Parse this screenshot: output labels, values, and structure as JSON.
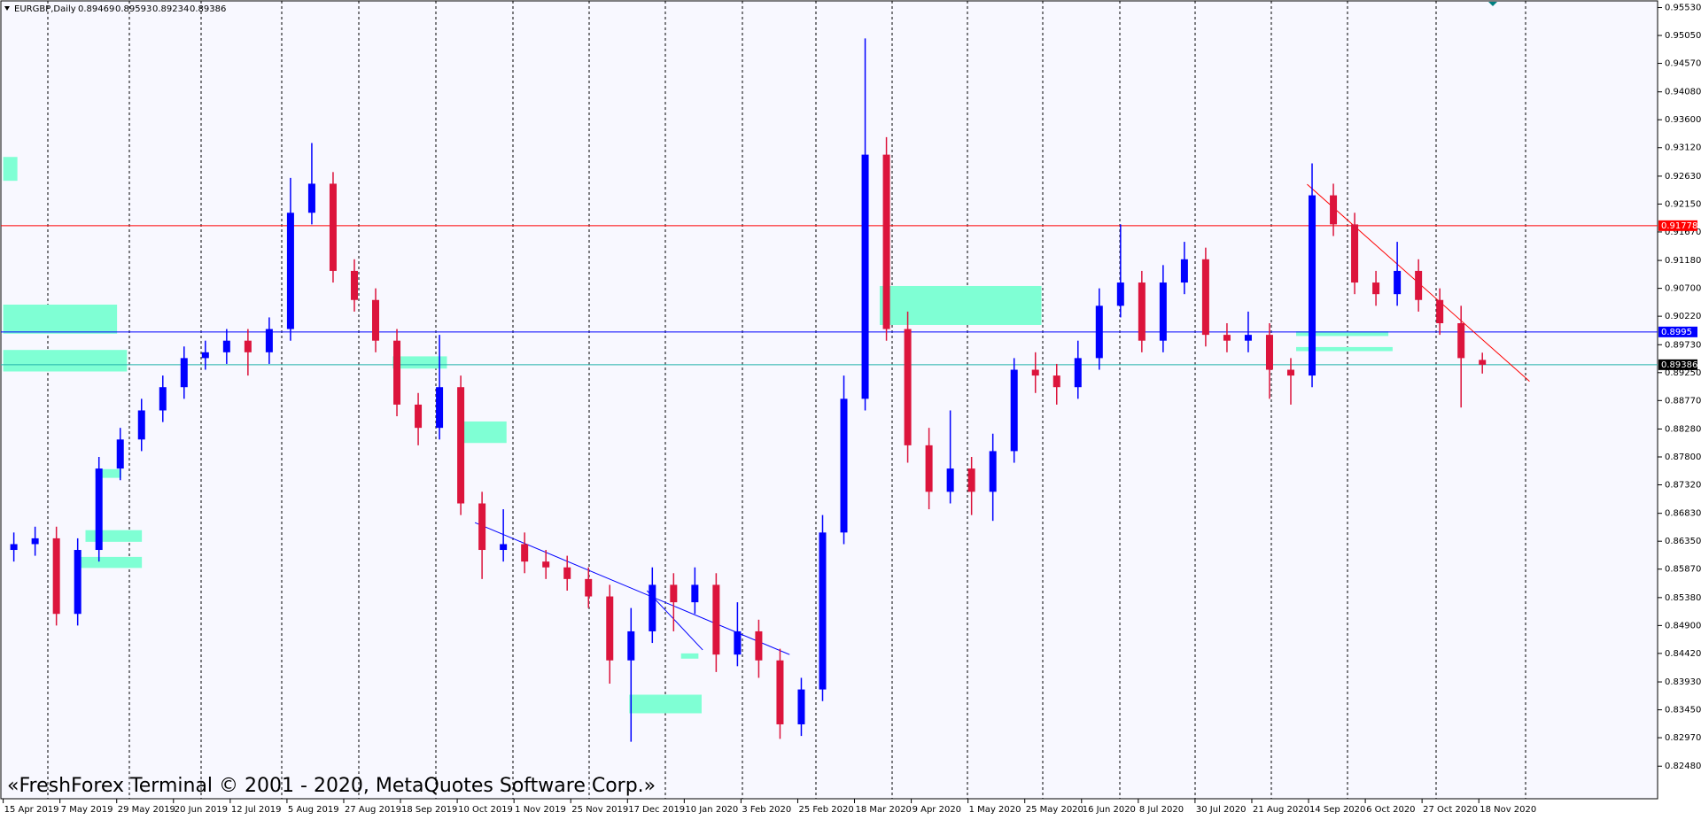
{
  "chart_data": {
    "type": "candlestick",
    "symbol": "EURGBP,Daily",
    "ohlc_header": [
      0.89469,
      0.89593,
      0.89234,
      0.89386
    ],
    "watermark": "«FreshForex Terminal © 2001 - 2020, MetaQuotes Software Corp.»",
    "up_color": "#0000ff",
    "down_color": "#dc143c",
    "zone_color": "#7fffd4",
    "xlim": [
      -0.9,
      466.4
    ],
    "ylim": [
      0.8192,
      0.9566
    ],
    "xticks": [
      {
        "value": 0,
        "label": "15 Apr 2019"
      },
      {
        "value": 16,
        "label": "7 May 2019"
      },
      {
        "value": 32,
        "label": "29 May 2019"
      },
      {
        "value": 48,
        "label": "20 Jun 2019"
      },
      {
        "value": 64,
        "label": "12 Jul 2019"
      },
      {
        "value": 80,
        "label": "5 Aug 2019"
      },
      {
        "value": 96,
        "label": "27 Aug 2019"
      },
      {
        "value": 112,
        "label": "18 Sep 2019"
      },
      {
        "value": 128,
        "label": "10 Oct 2019"
      },
      {
        "value": 144,
        "label": "1 Nov 2019"
      },
      {
        "value": 160,
        "label": "25 Nov 2019"
      },
      {
        "value": 176,
        "label": "17 Dec 2019"
      },
      {
        "value": 192,
        "label": "10 Jan 2020"
      },
      {
        "value": 208,
        "label": "3 Feb 2020"
      },
      {
        "value": 224,
        "label": "25 Feb 2020"
      },
      {
        "value": 240,
        "label": "18 Mar 2020"
      },
      {
        "value": 256,
        "label": "9 Apr 2020"
      },
      {
        "value": 272,
        "label": "1 May 2020"
      },
      {
        "value": 288,
        "label": "25 May 2020"
      },
      {
        "value": 304,
        "label": "16 Jun 2020"
      },
      {
        "value": 320,
        "label": "8 Jul 2020"
      },
      {
        "value": 336,
        "label": "30 Jul 2020"
      },
      {
        "value": 352,
        "label": "21 Aug 2020"
      },
      {
        "value": 368,
        "label": "14 Sep 2020"
      },
      {
        "value": 384,
        "label": "6 Oct 2020"
      },
      {
        "value": 400,
        "label": "27 Oct 2020"
      },
      {
        "value": 416,
        "label": "18 Nov 2020"
      }
    ],
    "yticks": [
      {
        "value": 0.9553,
        "label": "0.95530"
      },
      {
        "value": 0.9505,
        "label": "0.95050"
      },
      {
        "value": 0.9457,
        "label": "0.94570"
      },
      {
        "value": 0.9408,
        "label": "0.94080"
      },
      {
        "value": 0.936,
        "label": "0.93600"
      },
      {
        "value": 0.9312,
        "label": "0.93120"
      },
      {
        "value": 0.9263,
        "label": "0.92630"
      },
      {
        "value": 0.9215,
        "label": "0.92150"
      },
      {
        "value": 0.9167,
        "label": "0.91670"
      },
      {
        "value": 0.9118,
        "label": "0.91180"
      },
      {
        "value": 0.907,
        "label": "0.90700"
      },
      {
        "value": 0.9022,
        "label": "0.90220"
      },
      {
        "value": 0.8973,
        "label": "0.89730"
      },
      {
        "value": 0.8925,
        "label": "0.89250"
      },
      {
        "value": 0.8877,
        "label": "0.88770"
      },
      {
        "value": 0.8828,
        "label": "0.88280"
      },
      {
        "value": 0.878,
        "label": "0.87800"
      },
      {
        "value": 0.8732,
        "label": "0.87320"
      },
      {
        "value": 0.8683,
        "label": "0.86830"
      },
      {
        "value": 0.8635,
        "label": "0.86350"
      },
      {
        "value": 0.8587,
        "label": "0.85870"
      },
      {
        "value": 0.8538,
        "label": "0.85380"
      },
      {
        "value": 0.849,
        "label": "0.84900"
      },
      {
        "value": 0.8442,
        "label": "0.84420"
      },
      {
        "value": 0.8393,
        "label": "0.83930"
      },
      {
        "value": 0.8345,
        "label": "0.83450"
      },
      {
        "value": 0.8297,
        "label": "0.82970"
      },
      {
        "value": 0.8248,
        "label": "0.82480"
      }
    ],
    "candles": {
      "x": [
        3,
        9,
        15,
        21,
        27,
        33,
        39,
        45,
        51,
        57,
        63,
        69,
        75,
        81,
        87,
        93,
        99,
        105,
        111,
        117,
        123,
        129,
        135,
        141,
        147,
        153,
        159,
        165,
        171,
        177,
        183,
        189,
        195,
        201,
        207,
        213,
        219,
        225,
        231,
        237,
        243,
        249,
        255,
        261,
        267,
        273,
        279,
        285,
        291,
        297,
        303,
        309,
        315,
        321,
        327,
        333,
        339,
        345,
        351,
        357,
        363,
        369,
        375,
        381,
        387,
        393,
        399,
        405,
        411,
        417
      ],
      "open": [
        0.862,
        0.863,
        0.864,
        0.851,
        0.862,
        0.876,
        0.881,
        0.886,
        0.89,
        0.895,
        0.896,
        0.898,
        0.896,
        0.9,
        0.92,
        0.925,
        0.91,
        0.905,
        0.898,
        0.887,
        0.883,
        0.89,
        0.87,
        0.862,
        0.863,
        0.86,
        0.859,
        0.857,
        0.854,
        0.843,
        0.848,
        0.856,
        0.853,
        0.856,
        0.844,
        0.848,
        0.843,
        0.832,
        0.838,
        0.865,
        0.888,
        0.93,
        0.9,
        0.88,
        0.872,
        0.876,
        0.872,
        0.879,
        0.893,
        0.892,
        0.89,
        0.895,
        0.904,
        0.908,
        0.898,
        0.908,
        0.912,
        0.899,
        0.898,
        0.899,
        0.893,
        0.892,
        0.923,
        0.918,
        0.908,
        0.906,
        0.91,
        0.905,
        0.901,
        0.89469
      ],
      "high": [
        0.865,
        0.866,
        0.866,
        0.864,
        0.878,
        0.883,
        0.888,
        0.892,
        0.897,
        0.898,
        0.9,
        0.9,
        0.902,
        0.926,
        0.932,
        0.927,
        0.912,
        0.907,
        0.9,
        0.889,
        0.899,
        0.892,
        0.872,
        0.869,
        0.865,
        0.862,
        0.861,
        0.859,
        0.856,
        0.852,
        0.859,
        0.858,
        0.859,
        0.858,
        0.853,
        0.85,
        0.845,
        0.84,
        0.868,
        0.892,
        0.95,
        0.933,
        0.903,
        0.883,
        0.886,
        0.878,
        0.882,
        0.895,
        0.896,
        0.894,
        0.898,
        0.907,
        0.918,
        0.91,
        0.911,
        0.915,
        0.914,
        0.901,
        0.903,
        0.901,
        0.895,
        0.9285,
        0.925,
        0.92,
        0.91,
        0.915,
        0.912,
        0.907,
        0.904,
        0.89593
      ],
      "low": [
        0.86,
        0.861,
        0.849,
        0.849,
        0.86,
        0.874,
        0.879,
        0.884,
        0.888,
        0.893,
        0.894,
        0.892,
        0.894,
        0.898,
        0.918,
        0.908,
        0.903,
        0.896,
        0.885,
        0.88,
        0.881,
        0.868,
        0.857,
        0.86,
        0.858,
        0.857,
        0.855,
        0.852,
        0.839,
        0.829,
        0.846,
        0.848,
        0.851,
        0.841,
        0.842,
        0.84,
        0.8295,
        0.83,
        0.836,
        0.863,
        0.886,
        0.898,
        0.877,
        0.869,
        0.87,
        0.868,
        0.867,
        0.877,
        0.889,
        0.887,
        0.888,
        0.893,
        0.902,
        0.896,
        0.896,
        0.906,
        0.897,
        0.896,
        0.896,
        0.888,
        0.887,
        0.89,
        0.916,
        0.906,
        0.904,
        0.904,
        0.903,
        0.899,
        0.8865,
        0.89234
      ],
      "close": [
        0.863,
        0.864,
        0.851,
        0.862,
        0.876,
        0.881,
        0.886,
        0.89,
        0.895,
        0.896,
        0.898,
        0.896,
        0.9,
        0.92,
        0.925,
        0.91,
        0.905,
        0.898,
        0.887,
        0.883,
        0.89,
        0.87,
        0.862,
        0.863,
        0.86,
        0.859,
        0.857,
        0.854,
        0.843,
        0.848,
        0.856,
        0.853,
        0.856,
        0.844,
        0.848,
        0.843,
        0.832,
        0.838,
        0.865,
        0.888,
        0.93,
        0.9,
        0.88,
        0.872,
        0.876,
        0.872,
        0.879,
        0.893,
        0.892,
        0.89,
        0.895,
        0.904,
        0.908,
        0.898,
        0.908,
        0.912,
        0.899,
        0.898,
        0.899,
        0.893,
        0.892,
        0.923,
        0.918,
        0.908,
        0.906,
        0.91,
        0.905,
        0.901,
        0.895,
        0.89386
      ]
    },
    "levels": [
      {
        "value": 0.91778,
        "color": "#ff0000",
        "text_color": "#ffffff"
      },
      {
        "value": 0.8995,
        "color": "#0000ff",
        "text_color": "#ffffff"
      },
      {
        "value": 0.89386,
        "color": "#20b2aa",
        "label_bg": "#000000",
        "text_color": "#ffffff"
      }
    ],
    "trendlines": [
      {
        "x": [
          133,
          221.7
        ],
        "y": [
          0.8667,
          0.844
        ],
        "color": "#0000ff"
      },
      {
        "x": [
          181.5,
          197.2
        ],
        "y": [
          0.855,
          0.8448
        ],
        "color": "#0000ff"
      },
      {
        "x": [
          367.6,
          430.3
        ],
        "y": [
          0.9249,
          0.891
        ],
        "color": "#ff0000"
      }
    ],
    "zones": [
      {
        "x": [
          0,
          4.0
        ],
        "y": [
          0.9296,
          0.9255
        ]
      },
      {
        "x": [
          0,
          32.1
        ],
        "y": [
          0.9042,
          0.8992
        ]
      },
      {
        "x": [
          0,
          34.9
        ],
        "y": [
          0.8964,
          0.8927
        ]
      },
      {
        "x": [
          109.8,
          125.1
        ],
        "y": [
          0.8953,
          0.8932
        ]
      },
      {
        "x": [
          129.4,
          141.9
        ],
        "y": [
          0.8841,
          0.8804
        ]
      },
      {
        "x": [
          23.2,
          39.1
        ],
        "y": [
          0.8654,
          0.8634
        ]
      },
      {
        "x": [
          20.5,
          39.1
        ],
        "y": [
          0.8608,
          0.8589
        ]
      },
      {
        "x": [
          26.0,
          33.3
        ],
        "y": [
          0.8759,
          0.8744
        ]
      },
      {
        "x": [
          176.5,
          196.9
        ],
        "y": [
          0.8371,
          0.8339
        ]
      },
      {
        "x": [
          191.1,
          196.0
        ],
        "y": [
          0.8442,
          0.8433
        ]
      },
      {
        "x": [
          247.1,
          292.7
        ],
        "y": [
          0.9074,
          0.9007
        ]
      },
      {
        "x": [
          364.5,
          390.5
        ],
        "y": [
          0.8996,
          0.8988
        ]
      },
      {
        "x": [
          364.5,
          391.7
        ],
        "y": [
          0.8969,
          0.8962
        ]
      }
    ]
  }
}
